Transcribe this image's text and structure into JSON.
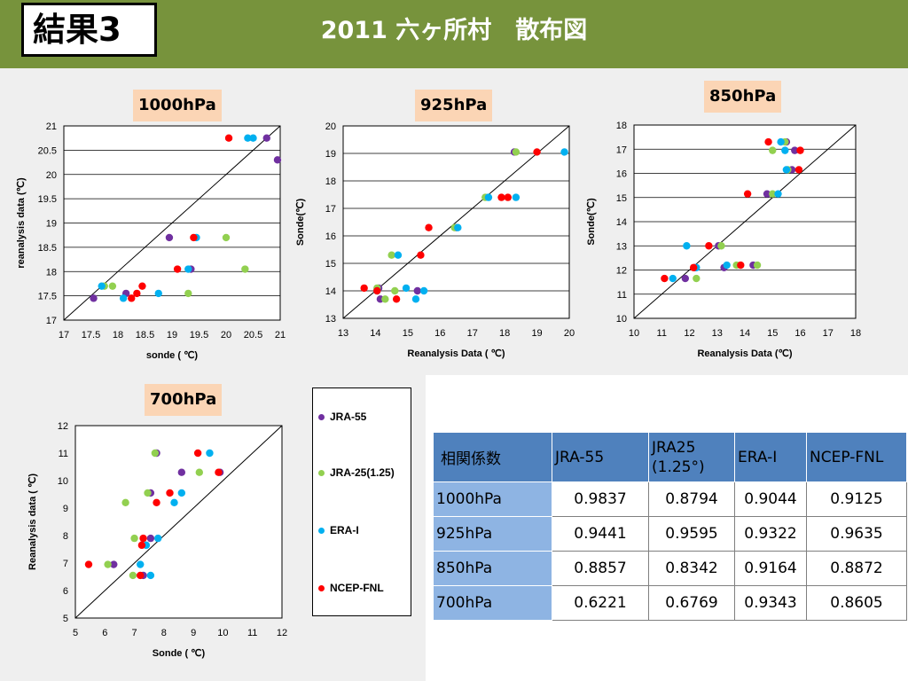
{
  "header": {
    "tag": "結果3",
    "title": "2011 六ヶ所村　散布図"
  },
  "colors": {
    "JRA-55": "#7030a0",
    "JRA-25(1.25)": "#92d050",
    "ERA-I": "#00b0f0",
    "NCEP-FNL": "#ff0000",
    "header": "#77933c",
    "badge": "#fbd5b5"
  },
  "legend": [
    {
      "name": "JRA-55",
      "color": "#7030a0"
    },
    {
      "name": "JRA-25(1.25)",
      "color": "#92d050"
    },
    {
      "name": "ERA-I",
      "color": "#00b0f0"
    },
    {
      "name": "NCEP-FNL",
      "color": "#ff0000"
    }
  ],
  "chart_data": [
    {
      "type": "scatter",
      "title": "1000hPa",
      "xlabel": "sonde ( ℃)",
      "ylabel": "reanalysis data (℃)",
      "xlim": [
        17,
        21
      ],
      "ylim": [
        17,
        21
      ],
      "xticks": [
        17,
        17.5,
        18,
        18.5,
        19,
        19.5,
        20,
        20.5,
        21
      ],
      "yticks": [
        17,
        17.5,
        18,
        18.5,
        19,
        19.5,
        20,
        20.5,
        21
      ],
      "gridlines": "horizontal",
      "reference_line": "y=x",
      "series": [
        {
          "name": "JRA-55",
          "points": [
            [
              17.55,
              17.45
            ],
            [
              18.15,
              17.55
            ],
            [
              19.35,
              18.05
            ],
            [
              18.95,
              18.7
            ],
            [
              20.75,
              20.75
            ],
            [
              20.95,
              20.3
            ]
          ]
        },
        {
          "name": "JRA-25(1.25)",
          "points": [
            [
              17.75,
              17.7
            ],
            [
              17.9,
              17.7
            ],
            [
              19.3,
              17.55
            ],
            [
              20.0,
              18.7
            ],
            [
              20.35,
              18.05
            ]
          ]
        },
        {
          "name": "ERA-I",
          "points": [
            [
              17.7,
              17.7
            ],
            [
              18.1,
              17.45
            ],
            [
              18.75,
              17.55
            ],
            [
              19.3,
              18.05
            ],
            [
              19.45,
              18.7
            ],
            [
              20.4,
              20.75
            ],
            [
              20.5,
              20.75
            ]
          ]
        },
        {
          "name": "NCEP-FNL",
          "points": [
            [
              18.25,
              17.45
            ],
            [
              18.35,
              17.55
            ],
            [
              18.45,
              17.7
            ],
            [
              19.1,
              18.05
            ],
            [
              19.4,
              18.7
            ],
            [
              20.05,
              20.75
            ]
          ]
        }
      ]
    },
    {
      "type": "scatter",
      "title": "925hPa",
      "xlabel": "Reanalysis Data ( ℃)",
      "ylabel": "Sonde(℃)",
      "xlim": [
        13,
        20
      ],
      "ylim": [
        13,
        20
      ],
      "xticks": [
        13,
        14,
        15,
        16,
        17,
        18,
        19,
        20
      ],
      "yticks": [
        13,
        14,
        15,
        16,
        17,
        18,
        19,
        20
      ],
      "gridlines": "horizontal",
      "reference_line": "y=x",
      "series": [
        {
          "name": "JRA-55",
          "points": [
            [
              14.15,
              13.7
            ],
            [
              14.1,
              14.1
            ],
            [
              15.3,
              14.0
            ],
            [
              16.5,
              16.3
            ],
            [
              18.3,
              19.05
            ]
          ]
        },
        {
          "name": "JRA-25(1.25)",
          "points": [
            [
              14.3,
              13.7
            ],
            [
              14.05,
              14.1
            ],
            [
              14.6,
              14.0
            ],
            [
              14.5,
              15.3
            ],
            [
              16.45,
              16.3
            ],
            [
              17.4,
              17.4
            ],
            [
              18.35,
              19.05
            ]
          ]
        },
        {
          "name": "ERA-I",
          "points": [
            [
              14.05,
              14.0
            ],
            [
              15.25,
              13.7
            ],
            [
              14.95,
              14.1
            ],
            [
              15.5,
              14.0
            ],
            [
              14.7,
              15.3
            ],
            [
              16.55,
              16.3
            ],
            [
              17.5,
              17.4
            ],
            [
              18.35,
              17.4
            ],
            [
              19.85,
              19.05
            ]
          ]
        },
        {
          "name": "NCEP-FNL",
          "points": [
            [
              13.65,
              14.1
            ],
            [
              14.05,
              14.0
            ],
            [
              14.65,
              13.7
            ],
            [
              15.4,
              15.3
            ],
            [
              15.65,
              16.3
            ],
            [
              17.9,
              17.4
            ],
            [
              18.1,
              17.4
            ],
            [
              19.0,
              19.05
            ]
          ]
        }
      ]
    },
    {
      "type": "scatter",
      "title": "850hPa",
      "xlabel": "Reanalysis Data (℃)",
      "ylabel": "Sonde(℃)",
      "xlim": [
        10,
        18
      ],
      "ylim": [
        10,
        18
      ],
      "xticks": [
        10,
        11,
        12,
        13,
        14,
        15,
        16,
        17,
        18
      ],
      "yticks": [
        10,
        11,
        12,
        13,
        14,
        15,
        16,
        17,
        18
      ],
      "gridlines": "horizontal",
      "reference_line": "y=x",
      "series": [
        {
          "name": "JRA-55",
          "points": [
            [
              11.85,
              11.65
            ],
            [
              12.2,
              12.1
            ],
            [
              13.25,
              12.1
            ],
            [
              13.05,
              13.0
            ],
            [
              14.3,
              12.2
            ],
            [
              14.8,
              15.15
            ],
            [
              15.5,
              17.3
            ],
            [
              15.7,
              16.15
            ],
            [
              15.8,
              16.95
            ]
          ]
        },
        {
          "name": "JRA-25(1.25)",
          "points": [
            [
              12.25,
              11.65
            ],
            [
              13.15,
              13.0
            ],
            [
              13.7,
              12.2
            ],
            [
              14.45,
              12.2
            ],
            [
              15.0,
              15.15
            ],
            [
              15.0,
              16.95
            ],
            [
              15.55,
              16.15
            ],
            [
              15.45,
              17.3
            ]
          ]
        },
        {
          "name": "ERA-I",
          "points": [
            [
              11.4,
              11.65
            ],
            [
              12.25,
              12.1
            ],
            [
              11.9,
              13.0
            ],
            [
              13.35,
              12.2
            ],
            [
              15.2,
              15.15
            ],
            [
              15.3,
              17.3
            ],
            [
              15.45,
              16.95
            ],
            [
              15.5,
              16.15
            ]
          ]
        },
        {
          "name": "NCEP-FNL",
          "points": [
            [
              11.1,
              11.65
            ],
            [
              12.15,
              12.1
            ],
            [
              12.7,
              13.0
            ],
            [
              13.85,
              12.2
            ],
            [
              14.1,
              15.15
            ],
            [
              14.85,
              17.3
            ],
            [
              15.95,
              16.15
            ],
            [
              16.0,
              16.95
            ]
          ]
        }
      ]
    },
    {
      "type": "scatter",
      "title": "700hPa",
      "xlabel": "Sonde ( ℃)",
      "ylabel": "Reanalysis data ( ℃)",
      "xlim": [
        5,
        12
      ],
      "ylim": [
        5,
        12
      ],
      "xticks": [
        5,
        6,
        7,
        8,
        9,
        10,
        11,
        12
      ],
      "yticks": [
        5,
        6,
        7,
        8,
        9,
        10,
        11,
        12
      ],
      "gridlines": "none",
      "reference_line": "y=x",
      "series": [
        {
          "name": "JRA-55",
          "points": [
            [
              6.3,
              6.95
            ],
            [
              7.3,
              6.55
            ],
            [
              7.55,
              7.9
            ],
            [
              7.55,
              9.55
            ],
            [
              7.75,
              11.0
            ],
            [
              8.6,
              10.3
            ],
            [
              9.9,
              10.3
            ]
          ]
        },
        {
          "name": "JRA-25(1.25)",
          "points": [
            [
              6.1,
              6.95
            ],
            [
              6.7,
              9.2
            ],
            [
              6.95,
              6.55
            ],
            [
              7.0,
              7.9
            ],
            [
              7.45,
              9.55
            ],
            [
              7.7,
              11.0
            ],
            [
              9.2,
              10.3
            ]
          ]
        },
        {
          "name": "ERA-I",
          "points": [
            [
              7.2,
              6.95
            ],
            [
              7.55,
              6.55
            ],
            [
              7.4,
              7.65
            ],
            [
              7.8,
              7.9
            ],
            [
              8.35,
              9.2
            ],
            [
              8.6,
              9.55
            ],
            [
              9.55,
              11.0
            ]
          ]
        },
        {
          "name": "NCEP-FNL",
          "points": [
            [
              5.45,
              6.95
            ],
            [
              7.2,
              6.55
            ],
            [
              7.25,
              7.65
            ],
            [
              7.3,
              7.9
            ],
            [
              7.75,
              9.2
            ],
            [
              8.2,
              9.55
            ],
            [
              9.15,
              11.0
            ],
            [
              9.85,
              10.3
            ]
          ]
        }
      ]
    }
  ],
  "table": {
    "header": [
      "相関係数",
      "JRA-55",
      "JRA25\n(1.25°)",
      "ERA-I",
      "NCEP-FNL"
    ],
    "rows": [
      [
        "1000hPa",
        "0.9837",
        "0.8794",
        "0.9044",
        "0.9125"
      ],
      [
        "925hPa",
        "0.9441",
        "0.9595",
        "0.9322",
        "0.9635"
      ],
      [
        "850hPa",
        "0.8857",
        "0.8342",
        "0.9164",
        "0.8872"
      ],
      [
        "700hPa",
        "0.6221",
        "0.6769",
        "0.9343",
        "0.8605"
      ]
    ]
  }
}
